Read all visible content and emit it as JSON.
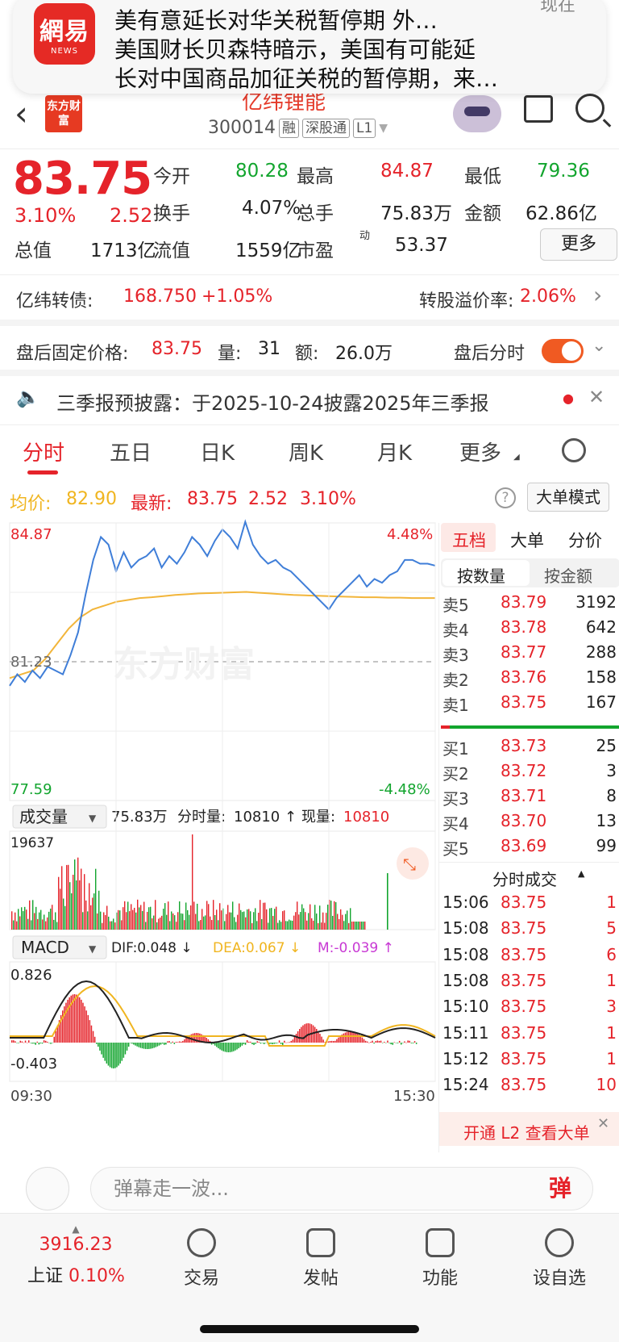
{
  "notification": {
    "app": "網易",
    "app_sub": "NEWS",
    "time": "现在",
    "line1": "美有意延长对华关税暂停期 外…",
    "line2": "美国财长贝森特暗示，美国有可能延",
    "line3": "长对中国商品加征关税的暂停期，来…"
  },
  "header": {
    "logo": "东方财富",
    "stock_name": "亿纬锂能",
    "code": "300014",
    "tags": [
      "融",
      "深股通",
      "L1"
    ]
  },
  "quote": {
    "price": "83.75",
    "pct": "3.10%",
    "chg": "2.52",
    "fields": [
      {
        "label": "今开",
        "value": "80.28",
        "color": "green"
      },
      {
        "label": "最高",
        "value": "84.87",
        "color": "red"
      },
      {
        "label": "最低",
        "value": "79.36",
        "color": "green"
      },
      {
        "label": "换手",
        "value": "4.07%",
        "color": "black"
      },
      {
        "label": "总手",
        "value": "75.83万",
        "color": "black"
      },
      {
        "label": "金额",
        "value": "62.86亿",
        "color": "black"
      },
      {
        "label": "总值",
        "value": "1713亿",
        "color": "black"
      },
      {
        "label": "流值",
        "value": "1559亿",
        "color": "black"
      },
      {
        "label": "市盈",
        "value": "53.37",
        "color": "black"
      }
    ],
    "pe_sup": "动",
    "more": "更多"
  },
  "bond": {
    "name": "亿纬转债:",
    "price": "168.750",
    "chg": "+1.05%",
    "premium_label": "转股溢价率:",
    "premium": "2.06%"
  },
  "after_hours": {
    "label": "盘后固定价格:",
    "price": "83.75",
    "vol_label": "量:",
    "vol": "31",
    "amt_label": "额:",
    "amt": "26.0万",
    "switch_label": "盘后分时"
  },
  "notice": {
    "text": "三季报预披露：于2025-10-24披露2025年三季报"
  },
  "tabs": [
    "分时",
    "五日",
    "日K",
    "周K",
    "月K",
    "更多"
  ],
  "avg_bar": {
    "avg_label": "均价:",
    "avg": "82.90",
    "last_label": "最新:",
    "last": "83.75",
    "chg": "2.52",
    "pct": "3.10%",
    "mode": "大单模式"
  },
  "chart_labels": {
    "high": "84.87",
    "low": "77.59",
    "pct_high": "4.48%",
    "pct_low": "-4.48%",
    "pre_close": "81.23",
    "watermark": "东方财富",
    "vol_max": "19637",
    "vol_label": "成交量",
    "vol_total": "75.83万",
    "vol_min_label": "分时量:",
    "vol_min": "10810",
    "vol_now_label": "现量:",
    "vol_now": "10810",
    "macd": "MACD",
    "dif": "DIF:0.048 ↓",
    "dea": "DEA:0.067 ↓",
    "m": "M:-0.039 ↑",
    "macd_max": "0.826",
    "macd_min": "-0.403",
    "t_start": "09:30",
    "t_end": "15:30"
  },
  "chart_data": {
    "type": "line",
    "title": "",
    "x_start": "09:30",
    "x_end": "15:30",
    "ylim": [
      77.59,
      84.87
    ],
    "pre_close": 81.23,
    "series": [
      {
        "name": "",
        "color": "#3f7ed8",
        "values": [
          80.6,
          80.9,
          80.7,
          81.0,
          80.8,
          81.1,
          81.0,
          80.9,
          81.4,
          82.0,
          83.0,
          83.9,
          84.5,
          84.3,
          83.6,
          84.1,
          83.7,
          83.9,
          84.0,
          84.2,
          83.7,
          84.0,
          83.8,
          84.1,
          84.5,
          84.3,
          84.0,
          84.4,
          84.7,
          84.5,
          84.2,
          84.9,
          84.3,
          84.0,
          83.8,
          83.9,
          83.7,
          83.6,
          83.4,
          83.2,
          83.0,
          82.8,
          82.6,
          82.9,
          83.1,
          83.3,
          83.5,
          83.2,
          83.4,
          83.3,
          83.5,
          83.6,
          83.9,
          83.9,
          83.8,
          83.8,
          83.75
        ]
      },
      {
        "name": "",
        "color": "#f2b53a",
        "values": [
          80.8,
          80.9,
          81.0,
          81.3,
          81.7,
          82.1,
          82.4,
          82.6,
          82.7,
          82.8,
          82.85,
          82.9,
          82.92,
          82.95,
          82.98,
          83.0,
          83.02,
          83.03,
          83.04,
          83.05,
          83.06,
          83.04,
          83.02,
          83.0,
          82.98,
          82.97,
          82.96,
          82.95,
          82.94,
          82.93,
          82.92,
          82.92,
          82.91,
          82.91,
          82.9,
          82.9,
          82.9
        ]
      }
    ]
  },
  "panel": {
    "tabs": [
      "五档",
      "大单",
      "分价"
    ],
    "subtabs": [
      "按数量",
      "按金额"
    ],
    "asks": [
      {
        "l": "卖5",
        "p": "83.79",
        "v": "3192"
      },
      {
        "l": "卖4",
        "p": "83.78",
        "v": "642"
      },
      {
        "l": "卖3",
        "p": "83.77",
        "v": "288"
      },
      {
        "l": "卖2",
        "p": "83.76",
        "v": "158"
      },
      {
        "l": "卖1",
        "p": "83.75",
        "v": "167"
      }
    ],
    "bids": [
      {
        "l": "买1",
        "p": "83.73",
        "v": "25"
      },
      {
        "l": "买2",
        "p": "83.72",
        "v": "3"
      },
      {
        "l": "买3",
        "p": "83.71",
        "v": "8"
      },
      {
        "l": "买4",
        "p": "83.70",
        "v": "13"
      },
      {
        "l": "买5",
        "p": "83.69",
        "v": "99"
      }
    ],
    "ticks_title": "分时成交",
    "ticks": [
      {
        "t": "15:06",
        "p": "83.75",
        "v": "1"
      },
      {
        "t": "15:08",
        "p": "83.75",
        "v": "5"
      },
      {
        "t": "15:08",
        "p": "83.75",
        "v": "6"
      },
      {
        "t": "15:08",
        "p": "83.75",
        "v": "1"
      },
      {
        "t": "15:10",
        "p": "83.75",
        "v": "3"
      },
      {
        "t": "15:11",
        "p": "83.75",
        "v": "1"
      },
      {
        "t": "15:12",
        "p": "83.75",
        "v": "1"
      },
      {
        "t": "15:24",
        "p": "83.75",
        "v": "10"
      }
    ],
    "l2": "开通 L2 查看大单"
  },
  "comment": {
    "placeholder": "弹幕走一波...",
    "danmu": "弹"
  },
  "tabbar": {
    "index_value": "3916.23",
    "index_name": "上证",
    "index_pct": "0.10%",
    "items": [
      "交易",
      "发帖",
      "功能",
      "设自选"
    ]
  }
}
